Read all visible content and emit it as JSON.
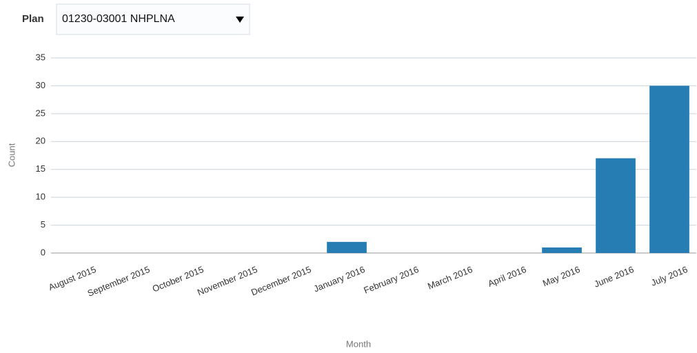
{
  "plan_selector": {
    "label": "Plan",
    "value": "01230-03001 NHPLNA"
  },
  "chart_data": {
    "type": "bar",
    "x_label": "Month",
    "y_label": "Count",
    "categories": [
      "August 2015",
      "September 2015",
      "October 2015",
      "November 2015",
      "December 2015",
      "January 2016",
      "February 2016",
      "March 2016",
      "April 2016",
      "May 2016",
      "June 2016",
      "July 2016"
    ],
    "values": [
      0,
      0,
      0,
      0,
      0,
      2,
      0,
      0,
      0,
      1,
      17,
      30
    ],
    "color": "#267db3",
    "ylim": [
      0,
      35
    ],
    "yticks": [
      0,
      5,
      10,
      15,
      20,
      25,
      30,
      35
    ],
    "grid": true
  }
}
